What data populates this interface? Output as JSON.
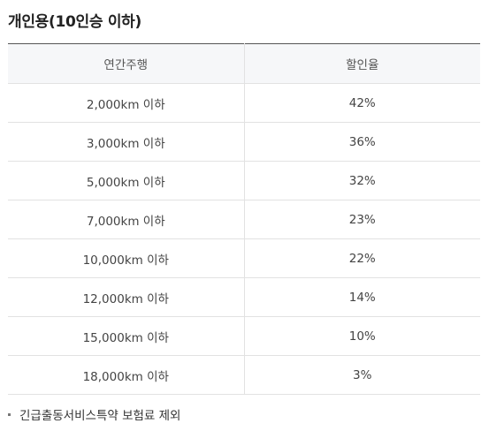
{
  "section": {
    "title": "개인용(10인승 이하)"
  },
  "table": {
    "headers": [
      "연간주행",
      "할인율"
    ],
    "rows": [
      {
        "distance": "2,000km 이하",
        "rate": "42%"
      },
      {
        "distance": "3,000km 이하",
        "rate": "36%"
      },
      {
        "distance": "5,000km 이하",
        "rate": "32%"
      },
      {
        "distance": "7,000km 이하",
        "rate": "23%"
      },
      {
        "distance": "10,000km 이하",
        "rate": "22%"
      },
      {
        "distance": "12,000km 이하",
        "rate": "14%"
      },
      {
        "distance": "15,000km 이하",
        "rate": "10%"
      },
      {
        "distance": "18,000km 이하",
        "rate": "3%"
      }
    ]
  },
  "note": {
    "text": "긴급출동서비스특약 보험료 제외",
    "icon": "bullet-icon"
  }
}
